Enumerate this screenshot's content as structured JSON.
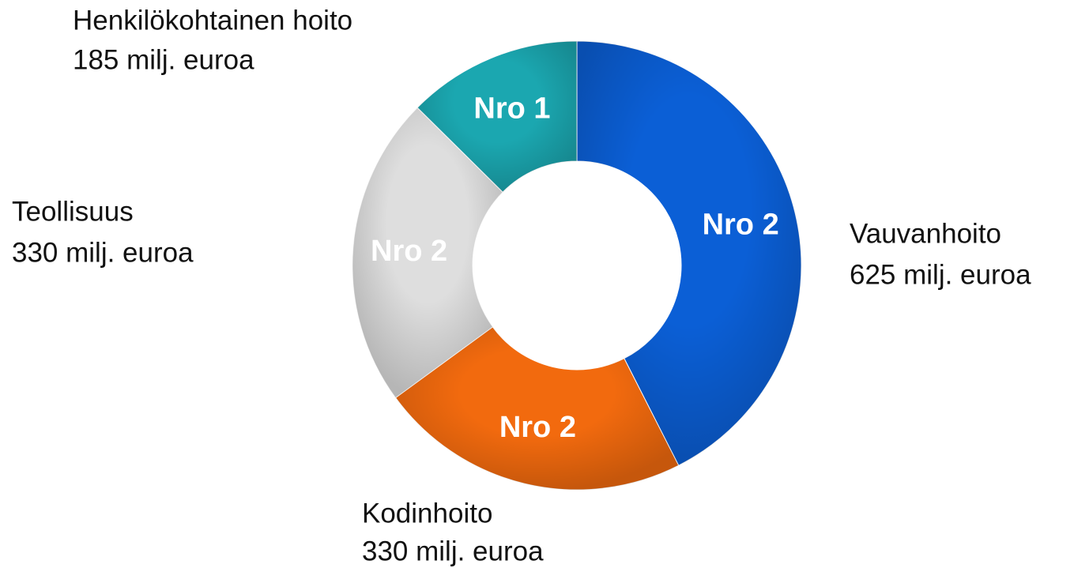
{
  "chart_data": {
    "type": "donut",
    "categories": [
      "Vauvanhoito",
      "Kodinhoito",
      "Teollisuus",
      "Henkilökohtainen hoito"
    ],
    "values": [
      625,
      330,
      330,
      185
    ],
    "value_labels": [
      "625 milj. euroa",
      "330 milj. euroa",
      "330 milj. euroa",
      "185 milj. euroa"
    ],
    "inner_labels": [
      "Nro 2",
      "Nro 2",
      "Nro 2",
      "Nro 1"
    ],
    "colors": [
      "#0b5fd6",
      "#f26a0e",
      "#dedede",
      "#1ba7b0"
    ]
  }
}
